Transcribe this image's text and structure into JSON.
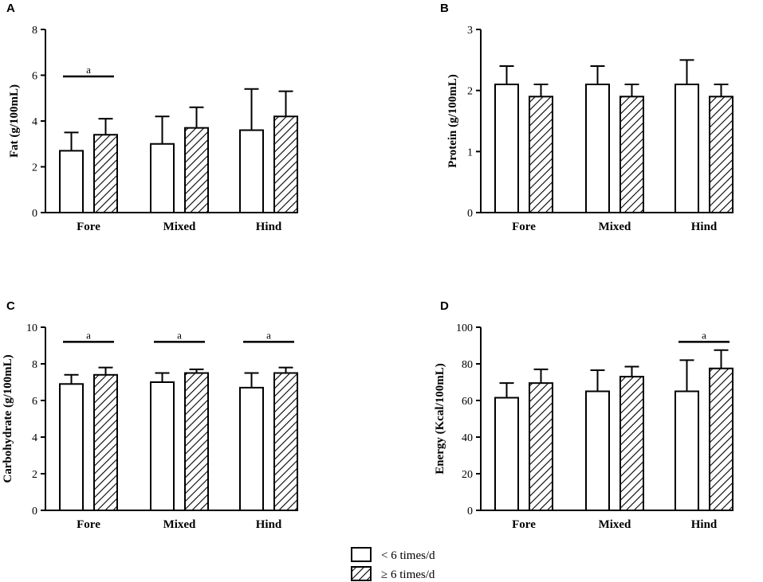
{
  "legend": {
    "items": [
      {
        "label": "< 6 times/d",
        "pattern": "open"
      },
      {
        "label": "≥ 6 times/d",
        "pattern": "hatched"
      }
    ]
  },
  "chart_data": [
    {
      "panel": "A",
      "type": "bar",
      "ylabel": "Fat (g/100mL)",
      "xlabel": "",
      "categories": [
        "Fore",
        "Mixed",
        "Hind"
      ],
      "ylim": [
        0,
        8
      ],
      "yticks": [
        0,
        2,
        4,
        6,
        8
      ],
      "series": [
        {
          "name": "< 6 times/d",
          "values": [
            2.7,
            3.0,
            3.6
          ],
          "errors": [
            0.8,
            1.2,
            1.8
          ]
        },
        {
          "name": "≥ 6 times/d",
          "values": [
            3.4,
            3.7,
            4.2
          ],
          "errors": [
            0.7,
            0.9,
            1.1
          ]
        }
      ],
      "significance": [
        {
          "category": "Fore",
          "label": "a",
          "y": 5.95
        }
      ]
    },
    {
      "panel": "B",
      "type": "bar",
      "ylabel": "Protein (g/100mL)",
      "xlabel": "",
      "categories": [
        "Fore",
        "Mixed",
        "Hind"
      ],
      "ylim": [
        0,
        3
      ],
      "yticks": [
        0,
        1,
        2,
        3
      ],
      "series": [
        {
          "name": "< 6 times/d",
          "values": [
            2.1,
            2.1,
            2.1
          ],
          "errors": [
            0.3,
            0.3,
            0.4
          ]
        },
        {
          "name": "≥ 6 times/d",
          "values": [
            1.9,
            1.9,
            1.9
          ],
          "errors": [
            0.2,
            0.2,
            0.2
          ]
        }
      ],
      "significance": []
    },
    {
      "panel": "C",
      "type": "bar",
      "ylabel": "Carbohydrate (g/100mL)",
      "xlabel": "",
      "categories": [
        "Fore",
        "Mixed",
        "Hind"
      ],
      "ylim": [
        0,
        10
      ],
      "yticks": [
        0,
        2,
        4,
        6,
        8,
        10
      ],
      "series": [
        {
          "name": "< 6 times/d",
          "values": [
            6.9,
            7.0,
            6.7
          ],
          "errors": [
            0.5,
            0.5,
            0.8
          ]
        },
        {
          "name": "≥ 6 times/d",
          "values": [
            7.4,
            7.5,
            7.5
          ],
          "errors": [
            0.4,
            0.2,
            0.3
          ]
        }
      ],
      "significance": [
        {
          "category": "Fore",
          "label": "a",
          "y": 9.2
        },
        {
          "category": "Mixed",
          "label": "a",
          "y": 9.2
        },
        {
          "category": "Hind",
          "label": "a",
          "y": 9.2
        }
      ]
    },
    {
      "panel": "D",
      "type": "bar",
      "ylabel": "Energy (Kcal/100mL)",
      "xlabel": "",
      "categories": [
        "Fore",
        "Mixed",
        "Hind"
      ],
      "ylim": [
        0,
        100
      ],
      "yticks": [
        0,
        20,
        40,
        60,
        80,
        100
      ],
      "series": [
        {
          "name": "< 6 times/d",
          "values": [
            61.5,
            65,
            65
          ],
          "errors": [
            8,
            11.5,
            17
          ]
        },
        {
          "name": "≥ 6 times/d",
          "values": [
            69.5,
            73,
            77.5
          ],
          "errors": [
            7.5,
            5.5,
            10
          ]
        }
      ],
      "significance": [
        {
          "category": "Hind",
          "label": "a",
          "y": 92
        }
      ]
    }
  ]
}
